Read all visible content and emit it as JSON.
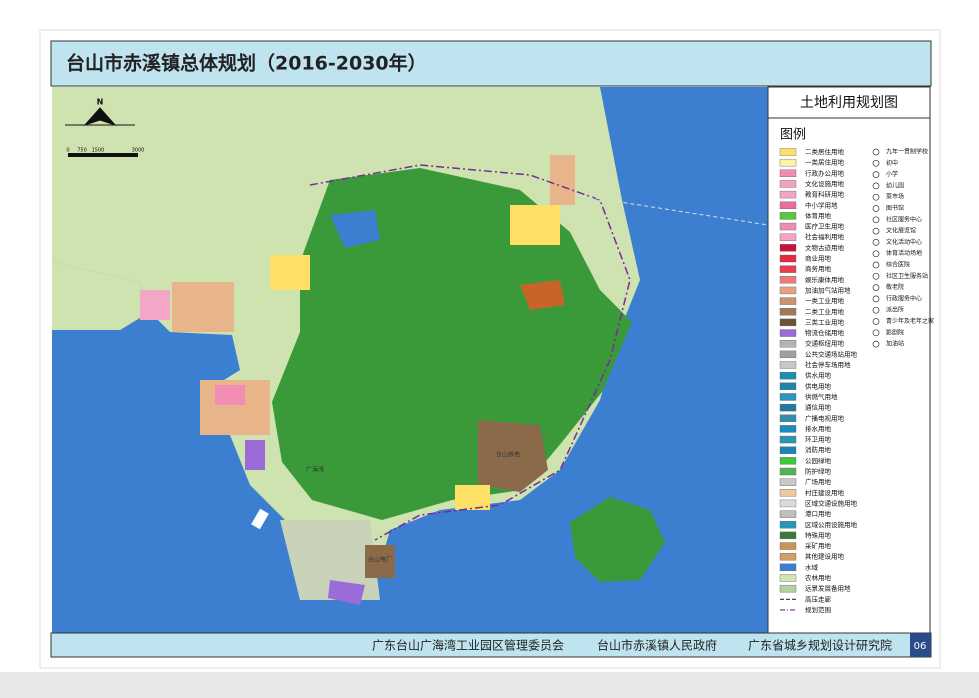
{
  "header": {
    "title": "台山市赤溪镇总体规划（2016-2030年）"
  },
  "panel": {
    "title": "土地利用规划图",
    "legend_title": "图例"
  },
  "legend": {
    "land_use": [
      {
        "label": "二类居住用地",
        "color": "#ffe066"
      },
      {
        "label": "一类居住用地",
        "color": "#fff3a0"
      },
      {
        "label": "行政办公用地",
        "color": "#f28cb4"
      },
      {
        "label": "文化设施用地",
        "color": "#f5a0c0"
      },
      {
        "label": "教育科研用地",
        "color": "#f0a6c8"
      },
      {
        "label": "中小学用地",
        "color": "#e86ea0"
      },
      {
        "label": "体育用地",
        "color": "#59c83c"
      },
      {
        "label": "医疗卫生用地",
        "color": "#f08cb4"
      },
      {
        "label": "社会福利用地",
        "color": "#f4a4c4"
      },
      {
        "label": "文物古迹用地",
        "color": "#c8143c"
      },
      {
        "label": "商业用地",
        "color": "#e8283c"
      },
      {
        "label": "商务用地",
        "color": "#e83c50"
      },
      {
        "label": "娱乐康体用地",
        "color": "#f07878"
      },
      {
        "label": "加油加气站用地",
        "color": "#e8a080"
      },
      {
        "label": "一类工业用地",
        "color": "#c8966e"
      },
      {
        "label": "二类工业用地",
        "color": "#a0785a"
      },
      {
        "label": "三类工业用地",
        "color": "#6e5038"
      },
      {
        "label": "物流仓储用地",
        "color": "#9b6bd8"
      },
      {
        "label": "交通枢纽用地",
        "color": "#b4b4b4"
      },
      {
        "label": "公共交通场站用地",
        "color": "#a0a0a0"
      },
      {
        "label": "社会停车场用地",
        "color": "#c8c8c8"
      },
      {
        "label": "供水用地",
        "color": "#1e8cb4"
      },
      {
        "label": "供电用地",
        "color": "#1e82aa"
      },
      {
        "label": "供燃气用地",
        "color": "#2896be"
      },
      {
        "label": "通信用地",
        "color": "#1e78a0"
      },
      {
        "label": "广播电视用地",
        "color": "#328cb4"
      },
      {
        "label": "排水用地",
        "color": "#1e8cbe"
      },
      {
        "label": "环卫用地",
        "color": "#2896b4"
      },
      {
        "label": "消防用地",
        "color": "#1e82b4"
      },
      {
        "label": "公园绿地",
        "color": "#3cc83c"
      },
      {
        "label": "防护绿地",
        "color": "#50b450"
      },
      {
        "label": "广场用地",
        "color": "#c8c8c8"
      },
      {
        "label": "村庄建设用地",
        "color": "#f0c8a0"
      },
      {
        "label": "区域交通设施用地",
        "color": "#dcdcdc"
      },
      {
        "label": "港口用地",
        "color": "#bebebe"
      },
      {
        "label": "区域公用设施用地",
        "color": "#2896b4"
      },
      {
        "label": "特殊用地",
        "color": "#3c783c"
      },
      {
        "label": "采矿用地",
        "color": "#c89650"
      },
      {
        "label": "其他建设用地",
        "color": "#d2a064"
      },
      {
        "label": "水域",
        "color": "#3c7fd0"
      },
      {
        "label": "农林用地",
        "color": "#d2e6b4"
      },
      {
        "label": "远景发展备用地",
        "color": "#b4d2a0"
      },
      {
        "label": "高压走廊",
        "color": "#333333",
        "line": "dash"
      },
      {
        "label": "规划范围",
        "color": "#7a2a9a",
        "line": "dashdot"
      }
    ],
    "facilities": [
      "九年一贯制学校",
      "初中",
      "小学",
      "幼儿园",
      "菜市场",
      "图书馆",
      "社区服务中心",
      "文化展览馆",
      "文化活动中心",
      "体育活动场地",
      "综合医院",
      "社区卫生服务站",
      "敬老院",
      "行政服务中心",
      "派出所",
      "青少年及老年之家",
      "影剧院",
      "加油站"
    ]
  },
  "map": {
    "labels": [
      "台山核电",
      "台山电厂",
      "广海湾",
      "N"
    ],
    "scale": [
      "0",
      "750",
      "1500",
      "3000"
    ]
  },
  "footer": {
    "organizations": [
      "广东台山广海湾工业园区管理委员会",
      "台山市赤溪镇人民政府",
      "广东省城乡规划设计研究院"
    ],
    "page": "06"
  }
}
